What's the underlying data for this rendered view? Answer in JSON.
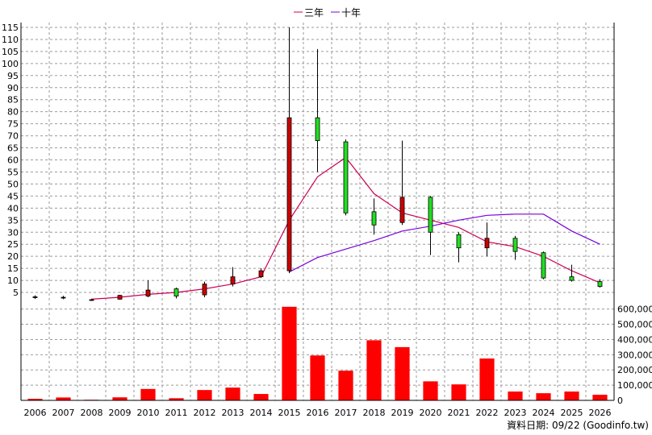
{
  "chart_data": {
    "type": "candlestick",
    "title": "",
    "legend": {
      "placement": "top-center",
      "entries": [
        {
          "label": "三年",
          "color": "#cc0055"
        },
        {
          "label": "十年",
          "color": "#7700dd"
        }
      ]
    },
    "footnote": "資料日期: 09/22 (Goodinfo.tw)",
    "x": [
      "2006",
      "2007",
      "2008",
      "2009",
      "2010",
      "2011",
      "2012",
      "2013",
      "2014",
      "2015",
      "2016",
      "2017",
      "2018",
      "2019",
      "2020",
      "2021",
      "2022",
      "2023",
      "2024",
      "2025",
      "2026"
    ],
    "price_axis": {
      "ylim": [
        0,
        117
      ],
      "ticks": [
        5,
        10,
        15,
        20,
        25,
        30,
        35,
        40,
        45,
        50,
        55,
        60,
        65,
        70,
        75,
        80,
        85,
        90,
        95,
        100,
        105,
        110,
        115
      ]
    },
    "volume_axis": {
      "ylim": [
        0,
        630000
      ],
      "ticks": [
        0,
        100000,
        200000,
        300000,
        400000,
        500000,
        600000
      ],
      "tick_labels": [
        "0",
        "100,000",
        "200,000",
        "300,000",
        "400,000",
        "500,000",
        "600,000"
      ]
    },
    "candles": [
      {
        "open": 3.2,
        "close": 3.2,
        "high": 3.8,
        "low": 2.3
      },
      {
        "open": 3.0,
        "close": 3.0,
        "high": 3.6,
        "low": 2.2
      },
      {
        "open": 2.0,
        "close": 2.0,
        "high": 2.4,
        "low": 1.6
      },
      {
        "open": 2.2,
        "close": 3.8,
        "high": 4.0,
        "low": 2.0
      },
      {
        "open": 3.5,
        "close": 6.0,
        "high": 10.0,
        "low": 3.0
      },
      {
        "open": 6.5,
        "close": 3.5,
        "high": 7.0,
        "low": 2.5
      },
      {
        "open": 4.0,
        "close": 8.5,
        "high": 9.5,
        "low": 3.0
      },
      {
        "open": 8.5,
        "close": 11.5,
        "high": 15.5,
        "low": 7.5
      },
      {
        "open": 11.5,
        "close": 14.0,
        "high": 15.0,
        "low": 11.0
      },
      {
        "open": 14.0,
        "close": 77.5,
        "high": 115.0,
        "low": 13.0
      },
      {
        "open": 77.5,
        "close": 68.0,
        "high": 106.0,
        "low": 55.0
      },
      {
        "open": 67.5,
        "close": 38.0,
        "high": 68.5,
        "low": 37.0
      },
      {
        "open": 38.5,
        "close": 33.0,
        "high": 44.0,
        "low": 29.0
      },
      {
        "open": 34.0,
        "close": 44.5,
        "high": 68.0,
        "low": 33.0
      },
      {
        "open": 44.5,
        "close": 30.0,
        "high": 45.0,
        "low": 20.5
      },
      {
        "open": 29.0,
        "close": 23.5,
        "high": 30.0,
        "low": 17.5
      },
      {
        "open": 23.5,
        "close": 27.5,
        "high": 34.0,
        "low": 20.0
      },
      {
        "open": 27.5,
        "close": 22.0,
        "high": 28.5,
        "low": 18.5
      },
      {
        "open": 21.5,
        "close": 11.0,
        "high": 22.0,
        "low": 10.5
      },
      {
        "open": 11.5,
        "close": 10.0,
        "high": 16.5,
        "low": 9.5
      },
      {
        "open": 9.5,
        "close": 7.5,
        "high": 10.5,
        "low": 7.0
      }
    ],
    "series": [
      {
        "name": "三年",
        "color": "#cc0055",
        "values": [
          null,
          null,
          2.2,
          3.0,
          4.2,
          5.0,
          6.5,
          8.5,
          11.5,
          35.0,
          53.0,
          61.0,
          46.0,
          38.0,
          35.0,
          32.0,
          26.0,
          24.0,
          20.0,
          14.0,
          9.0
        ]
      },
      {
        "name": "十年",
        "color": "#7700dd",
        "values": [
          null,
          null,
          null,
          null,
          null,
          null,
          null,
          null,
          null,
          13.5,
          19.5,
          23.0,
          26.5,
          30.5,
          32.5,
          35.0,
          37.0,
          37.5,
          37.5,
          30.5,
          25.0
        ]
      }
    ],
    "volume": {
      "color": "#ff0000",
      "values": [
        10000,
        19000,
        4000,
        20000,
        75000,
        14000,
        68000,
        84000,
        42000,
        615000,
        295000,
        195000,
        395000,
        350000,
        125000,
        105000,
        275000,
        58000,
        47000,
        58000,
        37000
      ]
    },
    "candle_colors": {
      "up": "#cc0000",
      "down": "#22dd22",
      "wick": "#000000"
    },
    "grid": true
  }
}
